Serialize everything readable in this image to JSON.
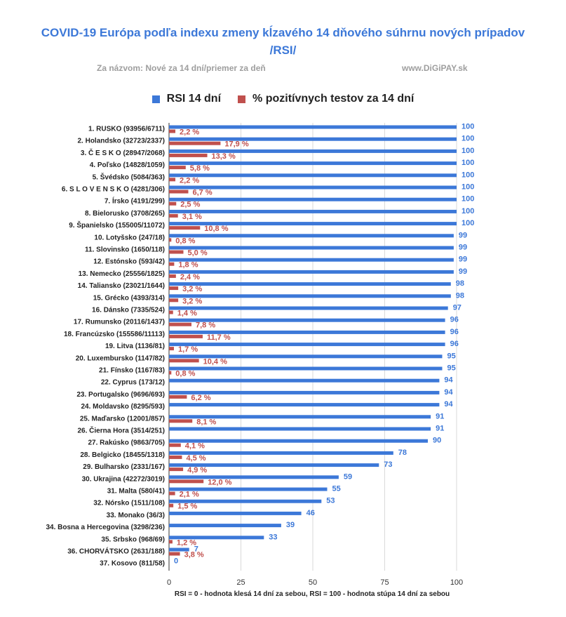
{
  "title_line1": "COVID-19 Európa podľa indexu zmeny  kĺzavého 14 dňového súhrnu nových prípadov",
  "title_line2": "/RSI/",
  "subtitle_left": "Za názvom: Nové za 14 dní/priemer za deň",
  "subtitle_right": "www.DiGiPAY.sk",
  "colors": {
    "rsi": "#3c78d8",
    "pos": "#c0504d",
    "title": "#3c78d8"
  },
  "chart_data": {
    "type": "bar",
    "orientation": "horizontal",
    "categories": [
      "1. RUSKO (93956/6711)",
      "2. Holandsko (32723/2337)",
      "3. Č E S K O (28947/2068)",
      "4. Poľsko (14828/1059)",
      "5. Švédsko (5084/363)",
      "6.  S L O V E N S K O (4281/306)",
      "7. Írsko (4191/299)",
      "8. Bielorusko (3708/265)",
      "9. Španielsko (155005/11072)",
      "10. Lotyšsko (247/18)",
      "11. Slovinsko (1650/118)",
      "12. Estónsko (593/42)",
      "13. Nemecko (25556/1825)",
      "14. Taliansko (23021/1644)",
      "15. Grécko (4393/314)",
      "16. Dánsko (7335/524)",
      "17. Rumunsko (20116/1437)",
      "18. Francúzsko (155586/11113)",
      "19. Litva (1136/81)",
      "20. Luxembursko (1147/82)",
      "21. Fínsko (1167/83)",
      "22. Cyprus (173/12)",
      "23. Portugalsko (9696/693)",
      "24. Moldavsko (8295/593)",
      "25. Maďarsko (12001/857)",
      "26. Čierna Hora (3514/251)",
      "27. Rakúsko (9863/705)",
      "28. Belgicko (18455/1318)",
      "29. Bulharsko (2331/167)",
      "30. Ukrajina (42272/3019)",
      "31. Malta (580/41)",
      "32. Nórsko (1511/108)",
      "33. Monako (36/3)",
      "34. Bosna a Hercegovina (3298/236)",
      "35. Srbsko (968/69)",
      "36. CHORVÁTSKO (2631/188)",
      "37. Kosovo (811/58)"
    ],
    "series": [
      {
        "name": "RSI 14 dní",
        "color": "#3c78d8",
        "values": [
          100,
          100,
          100,
          100,
          100,
          100,
          100,
          100,
          100,
          99,
          99,
          99,
          99,
          98,
          98,
          97,
          96,
          96,
          96,
          95,
          95,
          94,
          94,
          94,
          91,
          91,
          90,
          78,
          73,
          59,
          55,
          53,
          46,
          39,
          33,
          7,
          0
        ]
      },
      {
        "name": "% pozitívnych testov za 14 dní",
        "color": "#c0504d",
        "values": [
          2.2,
          17.9,
          13.3,
          5.8,
          2.2,
          6.7,
          2.5,
          3.1,
          10.8,
          0.8,
          5.0,
          1.8,
          2.4,
          3.2,
          3.2,
          1.4,
          7.8,
          11.7,
          1.7,
          10.4,
          0.8,
          null,
          6.2,
          null,
          8.1,
          null,
          4.1,
          4.5,
          4.9,
          12.0,
          2.1,
          1.5,
          null,
          null,
          1.2,
          3.8,
          null
        ],
        "labels": [
          "2,2 %",
          "17,9 %",
          "13,3 %",
          "5,8 %",
          "2,2 %",
          "6,7 %",
          "2,5 %",
          "3,1 %",
          "10,8 %",
          "0,8 %",
          "5,0 %",
          "1,8 %",
          "2,4 %",
          "3,2 %",
          "3,2 %",
          "1,4 %",
          "7,8 %",
          "11,7 %",
          "1,7 %",
          "10,4 %",
          "0,8 %",
          "",
          "6,2 %",
          "",
          "8,1 %",
          "",
          "4,1 %",
          "4,5 %",
          "4,9 %",
          "12,0 %",
          "2,1 %",
          "1,5 %",
          "",
          "",
          "1,2 %",
          "3,8 %",
          ""
        ]
      }
    ],
    "x_ticks": [
      "0",
      "25",
      "50",
      "75",
      "100"
    ],
    "xlim": [
      0,
      100
    ],
    "xlabel": "RSI = 0 - hodnota klesá 14 dní za sebou, RSI = 100 - hodnota stúpa 14 dní za sebou",
    "grid": true,
    "legend_position": "top"
  }
}
